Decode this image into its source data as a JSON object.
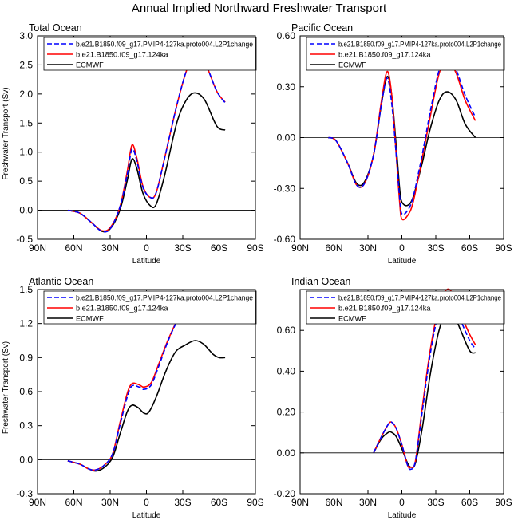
{
  "title": "Annual Implied Northward Freshwater Transport",
  "legend_labels": [
    "b.e21.B1850.f09_g17.PMIP4-127ka.proto004.L2P1change",
    "b.e21.B1850.f09_g17.124ka",
    "ECMWF"
  ],
  "series_styles": [
    {
      "color": "#0000ff",
      "dash": "6,3"
    },
    {
      "color": "#ff0000",
      "dash": ""
    },
    {
      "color": "#000000",
      "dash": ""
    }
  ],
  "chart_data": [
    {
      "type": "line",
      "title": "Total Ocean",
      "xlabel": "Latitude",
      "ylabel": "Freshwater Transport (Sv)",
      "xticks": [
        "90N",
        "60N",
        "30N",
        "0",
        "30S",
        "60S",
        "90S"
      ],
      "yticks": [
        "-0.5",
        "0.0",
        "0.5",
        "1.0",
        "1.5",
        "2.0",
        "2.5",
        "3.0"
      ],
      "ylim": [
        -0.5,
        3.0
      ],
      "xlim": [
        -90,
        90
      ],
      "reference_line": 0,
      "series": [
        {
          "name": "b.e21.B1850.f09_g17.PMIP4-127ka.proto004.L2P1change",
          "points": [
            [
              -65,
              0
            ],
            [
              -55,
              -0.05
            ],
            [
              -45,
              -0.22
            ],
            [
              -37,
              -0.36
            ],
            [
              -30,
              -0.32
            ],
            [
              -22,
              0.05
            ],
            [
              -16,
              0.6
            ],
            [
              -12,
              1.05
            ],
            [
              -8,
              0.85
            ],
            [
              -3,
              0.4
            ],
            [
              3,
              0.22
            ],
            [
              8,
              0.3
            ],
            [
              15,
              0.9
            ],
            [
              25,
              1.8
            ],
            [
              33,
              2.4
            ],
            [
              40,
              2.68
            ],
            [
              48,
              2.55
            ],
            [
              58,
              2.05
            ],
            [
              65,
              1.85
            ]
          ]
        },
        {
          "name": "b.e21.B1850.f09_g17.124ka",
          "points": [
            [
              -65,
              0
            ],
            [
              -55,
              -0.05
            ],
            [
              -45,
              -0.22
            ],
            [
              -37,
              -0.35
            ],
            [
              -30,
              -0.3
            ],
            [
              -22,
              0.05
            ],
            [
              -16,
              0.65
            ],
            [
              -12,
              1.12
            ],
            [
              -8,
              0.9
            ],
            [
              -3,
              0.42
            ],
            [
              3,
              0.22
            ],
            [
              8,
              0.3
            ],
            [
              15,
              0.9
            ],
            [
              25,
              1.8
            ],
            [
              33,
              2.4
            ],
            [
              40,
              2.67
            ],
            [
              48,
              2.55
            ],
            [
              58,
              2.05
            ],
            [
              65,
              1.86
            ]
          ]
        },
        {
          "name": "ECMWF",
          "points": [
            [
              -65,
              0
            ],
            [
              -55,
              -0.05
            ],
            [
              -45,
              -0.22
            ],
            [
              -37,
              -0.36
            ],
            [
              -30,
              -0.32
            ],
            [
              -22,
              0.0
            ],
            [
              -16,
              0.5
            ],
            [
              -12,
              0.88
            ],
            [
              -8,
              0.72
            ],
            [
              -3,
              0.3
            ],
            [
              3,
              0.08
            ],
            [
              8,
              0.1
            ],
            [
              15,
              0.6
            ],
            [
              25,
              1.5
            ],
            [
              33,
              1.9
            ],
            [
              40,
              2.02
            ],
            [
              48,
              1.9
            ],
            [
              58,
              1.45
            ],
            [
              65,
              1.38
            ]
          ]
        }
      ]
    },
    {
      "type": "line",
      "title": "Pacific Ocean",
      "xlabel": "Latitude",
      "ylabel": "",
      "xticks": [
        "90N",
        "60N",
        "30N",
        "0",
        "30S",
        "60S",
        "90S"
      ],
      "yticks": [
        "-0.60",
        "-0.30",
        "0.00",
        "0.30",
        "0.60"
      ],
      "ylim": [
        -0.6,
        0.6
      ],
      "xlim": [
        -90,
        90
      ],
      "reference_line": 0,
      "series": [
        {
          "name": "b.e21.B1850.f09_g17.PMIP4-127ka.proto004.L2P1change",
          "points": [
            [
              -65,
              0
            ],
            [
              -58,
              -0.02
            ],
            [
              -48,
              -0.15
            ],
            [
              -40,
              -0.28
            ],
            [
              -33,
              -0.27
            ],
            [
              -25,
              -0.1
            ],
            [
              -18,
              0.2
            ],
            [
              -13,
              0.35
            ],
            [
              -9,
              0.2
            ],
            [
              -5,
              -0.1
            ],
            [
              -2,
              -0.35
            ],
            [
              0,
              -0.45
            ],
            [
              5,
              -0.43
            ],
            [
              10,
              -0.35
            ],
            [
              18,
              -0.1
            ],
            [
              25,
              0.15
            ],
            [
              33,
              0.4
            ],
            [
              40,
              0.49
            ],
            [
              48,
              0.4
            ],
            [
              56,
              0.25
            ],
            [
              65,
              0.12
            ]
          ]
        },
        {
          "name": "b.e21.B1850.f09_g17.124ka",
          "points": [
            [
              -65,
              0
            ],
            [
              -58,
              -0.02
            ],
            [
              -48,
              -0.15
            ],
            [
              -40,
              -0.28
            ],
            [
              -33,
              -0.27
            ],
            [
              -25,
              -0.1
            ],
            [
              -18,
              0.22
            ],
            [
              -13,
              0.39
            ],
            [
              -9,
              0.25
            ],
            [
              -5,
              -0.1
            ],
            [
              -2,
              -0.38
            ],
            [
              0,
              -0.48
            ],
            [
              5,
              -0.46
            ],
            [
              10,
              -0.38
            ],
            [
              18,
              -0.12
            ],
            [
              25,
              0.12
            ],
            [
              33,
              0.38
            ],
            [
              40,
              0.46
            ],
            [
              48,
              0.38
            ],
            [
              56,
              0.22
            ],
            [
              65,
              0.1
            ]
          ]
        },
        {
          "name": "ECMWF",
          "points": [
            [
              -65,
              0
            ],
            [
              -58,
              -0.02
            ],
            [
              -48,
              -0.15
            ],
            [
              -40,
              -0.27
            ],
            [
              -33,
              -0.26
            ],
            [
              -25,
              -0.1
            ],
            [
              -18,
              0.2
            ],
            [
              -13,
              0.36
            ],
            [
              -9,
              0.25
            ],
            [
              -5,
              -0.05
            ],
            [
              -2,
              -0.3
            ],
            [
              0,
              -0.38
            ],
            [
              5,
              -0.4
            ],
            [
              10,
              -0.35
            ],
            [
              18,
              -0.15
            ],
            [
              25,
              0.05
            ],
            [
              33,
              0.22
            ],
            [
              40,
              0.27
            ],
            [
              48,
              0.22
            ],
            [
              56,
              0.08
            ],
            [
              65,
              0.0
            ]
          ]
        }
      ]
    },
    {
      "type": "line",
      "title": "Atlantic Ocean",
      "xlabel": "Latitude",
      "ylabel": "Freshwater Transport (Sv)",
      "xticks": [
        "90N",
        "60N",
        "30N",
        "0",
        "30S",
        "60S",
        "90S"
      ],
      "yticks": [
        "-0.3",
        "0.0",
        "0.3",
        "0.6",
        "0.9",
        "1.2",
        "1.5"
      ],
      "ylim": [
        -0.3,
        1.5
      ],
      "xlim": [
        -90,
        90
      ],
      "reference_line": 0,
      "series": [
        {
          "name": "b.e21.B1850.f09_g17.PMIP4-127ka.proto004.L2P1change",
          "points": [
            [
              -65,
              -0.01
            ],
            [
              -55,
              -0.04
            ],
            [
              -48,
              -0.08
            ],
            [
              -42,
              -0.09
            ],
            [
              -35,
              -0.05
            ],
            [
              -28,
              0.05
            ],
            [
              -22,
              0.3
            ],
            [
              -16,
              0.55
            ],
            [
              -12,
              0.65
            ],
            [
              -6,
              0.64
            ],
            [
              -2,
              0.62
            ],
            [
              4,
              0.66
            ],
            [
              10,
              0.82
            ],
            [
              18,
              1.05
            ],
            [
              28,
              1.28
            ],
            [
              35,
              1.38
            ],
            [
              42,
              1.41
            ],
            [
              50,
              1.35
            ],
            [
              58,
              1.27
            ],
            [
              65,
              1.23
            ]
          ]
        },
        {
          "name": "b.e21.B1850.f09_g17.124ka",
          "points": [
            [
              -65,
              -0.01
            ],
            [
              -55,
              -0.04
            ],
            [
              -48,
              -0.08
            ],
            [
              -42,
              -0.09
            ],
            [
              -35,
              -0.05
            ],
            [
              -28,
              0.05
            ],
            [
              -22,
              0.32
            ],
            [
              -16,
              0.58
            ],
            [
              -12,
              0.67
            ],
            [
              -6,
              0.66
            ],
            [
              -2,
              0.64
            ],
            [
              4,
              0.68
            ],
            [
              10,
              0.84
            ],
            [
              18,
              1.06
            ],
            [
              28,
              1.28
            ],
            [
              35,
              1.37
            ],
            [
              42,
              1.4
            ],
            [
              50,
              1.34
            ],
            [
              58,
              1.27
            ],
            [
              65,
              1.24
            ]
          ]
        },
        {
          "name": "ECMWF",
          "points": [
            [
              -65,
              -0.01
            ],
            [
              -55,
              -0.04
            ],
            [
              -48,
              -0.08
            ],
            [
              -42,
              -0.1
            ],
            [
              -35,
              -0.07
            ],
            [
              -28,
              0.02
            ],
            [
              -22,
              0.22
            ],
            [
              -16,
              0.42
            ],
            [
              -12,
              0.48
            ],
            [
              -7,
              0.46
            ],
            [
              -2,
              0.41
            ],
            [
              2,
              0.42
            ],
            [
              8,
              0.55
            ],
            [
              16,
              0.78
            ],
            [
              24,
              0.95
            ],
            [
              32,
              1.01
            ],
            [
              40,
              1.05
            ],
            [
              47,
              1.02
            ],
            [
              55,
              0.93
            ],
            [
              60,
              0.9
            ],
            [
              65,
              0.9
            ]
          ]
        }
      ]
    },
    {
      "type": "line",
      "title": "Indian Ocean",
      "xlabel": "Latitude",
      "ylabel": "",
      "xticks": [
        "90N",
        "60N",
        "30N",
        "0",
        "30S",
        "60S",
        "90S"
      ],
      "yticks": [
        "-0.20",
        "0.00",
        "0.20",
        "0.40",
        "0.60"
      ],
      "ylim": [
        -0.2,
        0.8
      ],
      "xlim": [
        -90,
        90
      ],
      "reference_line": 0,
      "series": [
        {
          "name": "b.e21.B1850.f09_g17.PMIP4-127ka.proto004.L2P1change",
          "points": [
            [
              -25,
              0
            ],
            [
              -18,
              0.08
            ],
            [
              -12,
              0.14
            ],
            [
              -9,
              0.15
            ],
            [
              -5,
              0.12
            ],
            [
              0,
              0.04
            ],
            [
              5,
              -0.06
            ],
            [
              8,
              -0.08
            ],
            [
              12,
              -0.04
            ],
            [
              18,
              0.2
            ],
            [
              25,
              0.48
            ],
            [
              32,
              0.68
            ],
            [
              38,
              0.78
            ],
            [
              44,
              0.77
            ],
            [
              52,
              0.65
            ],
            [
              60,
              0.55
            ],
            [
              65,
              0.51
            ]
          ]
        },
        {
          "name": "b.e21.B1850.f09_g17.124ka",
          "points": [
            [
              -25,
              0
            ],
            [
              -18,
              0.08
            ],
            [
              -12,
              0.14
            ],
            [
              -9,
              0.15
            ],
            [
              -5,
              0.12
            ],
            [
              0,
              0.04
            ],
            [
              5,
              -0.06
            ],
            [
              8,
              -0.07
            ],
            [
              12,
              -0.04
            ],
            [
              18,
              0.22
            ],
            [
              25,
              0.5
            ],
            [
              32,
              0.7
            ],
            [
              38,
              0.79
            ],
            [
              44,
              0.79
            ],
            [
              52,
              0.68
            ],
            [
              60,
              0.58
            ],
            [
              65,
              0.53
            ]
          ]
        },
        {
          "name": "ECMWF",
          "points": [
            [
              -25,
              0
            ],
            [
              -18,
              0.07
            ],
            [
              -12,
              0.1
            ],
            [
              -9,
              0.1
            ],
            [
              -5,
              0.08
            ],
            [
              0,
              0.02
            ],
            [
              5,
              -0.05
            ],
            [
              8,
              -0.07
            ],
            [
              12,
              -0.05
            ],
            [
              18,
              0.12
            ],
            [
              25,
              0.38
            ],
            [
              32,
              0.58
            ],
            [
              38,
              0.68
            ],
            [
              44,
              0.7
            ],
            [
              52,
              0.6
            ],
            [
              60,
              0.5
            ],
            [
              65,
              0.49
            ]
          ]
        }
      ]
    }
  ]
}
